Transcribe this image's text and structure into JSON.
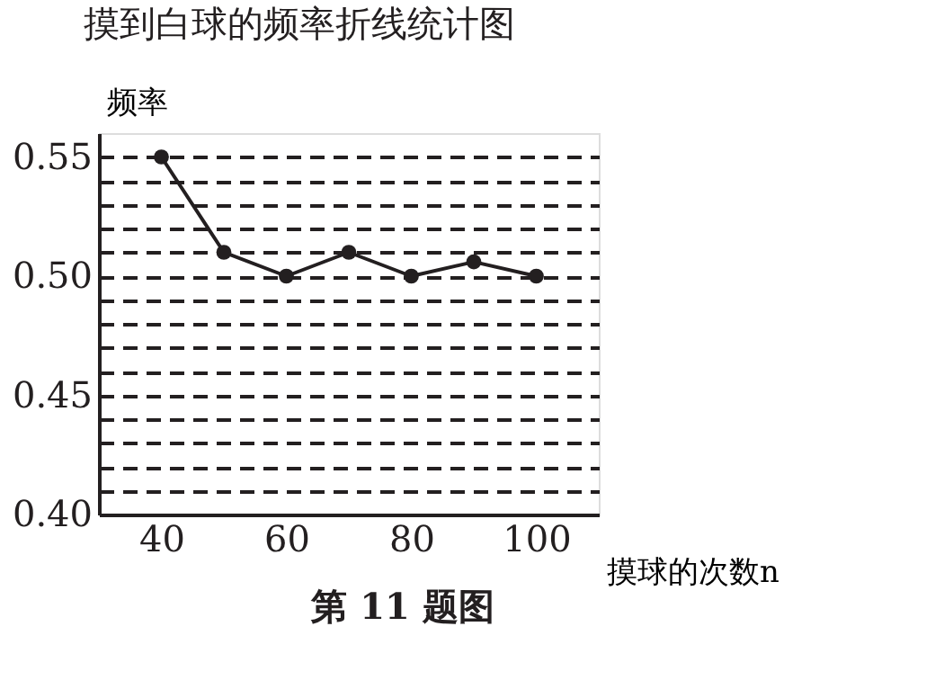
{
  "chart_data": {
    "type": "line",
    "title": "摸到白球的频率折线统计图",
    "xlabel": "摸球的次数n",
    "ylabel": "频率",
    "x": [
      40,
      50,
      60,
      70,
      80,
      90,
      100
    ],
    "series": [
      {
        "color": "#231f20",
        "values": [
          0.55,
          0.51,
          0.5,
          0.51,
          0.5,
          0.506,
          0.5
        ]
      }
    ],
    "xlim": [
      30,
      110
    ],
    "xticks": [
      40,
      60,
      80,
      100
    ],
    "ylim": [
      0.4,
      0.56
    ],
    "yticks": [
      {
        "value": 0.4,
        "label": "0.40"
      },
      {
        "value": 0.41,
        "label": null
      },
      {
        "value": 0.42,
        "label": null
      },
      {
        "value": 0.43,
        "label": null
      },
      {
        "value": 0.44,
        "label": null
      },
      {
        "value": 0.45,
        "label": "0.45"
      },
      {
        "value": 0.46,
        "label": null
      },
      {
        "value": 0.47,
        "label": null
      },
      {
        "value": 0.48,
        "label": null
      },
      {
        "value": 0.49,
        "label": null
      },
      {
        "value": 0.5,
        "label": "0.50"
      },
      {
        "value": 0.51,
        "label": null
      },
      {
        "value": 0.52,
        "label": null
      },
      {
        "value": 0.53,
        "label": null
      },
      {
        "value": 0.54,
        "label": null
      },
      {
        "value": 0.55,
        "label": "0.55"
      }
    ],
    "grid": "y",
    "marker": "circle",
    "line_style": "solid",
    "annotations": [
      "第 11 题图"
    ]
  }
}
